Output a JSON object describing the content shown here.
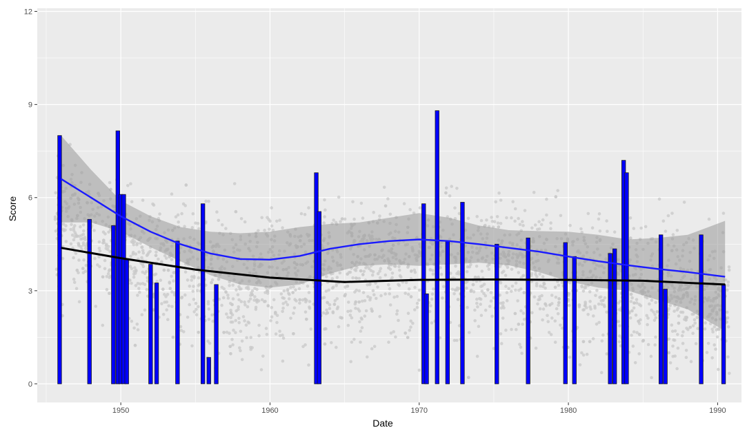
{
  "chart_data": {
    "type": "bar",
    "title": "",
    "xlabel": "Date",
    "ylabel": "Score",
    "xlim": [
      1944.4,
      1991.6
    ],
    "ylim": [
      -0.6,
      12.1
    ],
    "x_ticks": [
      1950,
      1960,
      1970,
      1980,
      1990
    ],
    "y_ticks": [
      0,
      3,
      6,
      9,
      12
    ],
    "grid": true,
    "legend": "none",
    "colors": {
      "panel": "#ebebeb",
      "grid": "#ffffff",
      "bar_fill": "#0000ff",
      "bar_outline": "#1a1a1a",
      "points": "#c8c8c8",
      "ribbon": "#999999",
      "blue_smooth": "#1a1aff",
      "black_smooth": "#000000"
    },
    "bars": {
      "x": [
        1945.9,
        1947.9,
        1949.5,
        1949.8,
        1950.0,
        1950.2,
        1950.4,
        1952.0,
        1952.4,
        1953.8,
        1955.5,
        1955.9,
        1956.4,
        1963.1,
        1963.3,
        1970.3,
        1970.5,
        1971.2,
        1971.9,
        1972.9,
        1975.2,
        1977.3,
        1979.8,
        1980.4,
        1982.8,
        1983.1,
        1983.7,
        1983.9,
        1986.2,
        1986.5,
        1988.9,
        1990.4
      ],
      "values": [
        8.0,
        5.3,
        5.1,
        8.15,
        6.1,
        6.1,
        4.0,
        3.85,
        3.25,
        4.6,
        5.8,
        0.85,
        3.2,
        6.8,
        5.55,
        5.8,
        2.9,
        8.8,
        4.6,
        5.85,
        4.5,
        4.7,
        4.55,
        4.1,
        4.2,
        4.35,
        7.2,
        6.8,
        4.8,
        3.05,
        4.8,
        3.2
      ]
    },
    "smooth_blue": {
      "x": [
        1946,
        1948,
        1950,
        1952,
        1954,
        1956,
        1958,
        1960,
        1962,
        1964,
        1966,
        1968,
        1970,
        1972,
        1974,
        1976,
        1978,
        1980,
        1982,
        1984,
        1986,
        1988,
        1990.5
      ],
      "y": [
        6.6,
        6.0,
        5.4,
        4.9,
        4.5,
        4.2,
        4.02,
        4.0,
        4.12,
        4.35,
        4.5,
        4.6,
        4.65,
        4.6,
        4.5,
        4.38,
        4.26,
        4.1,
        3.95,
        3.82,
        3.7,
        3.6,
        3.45
      ],
      "ci_low": [
        5.2,
        5.2,
        4.9,
        4.4,
        3.95,
        3.5,
        3.2,
        3.1,
        3.2,
        3.55,
        3.8,
        3.85,
        3.8,
        3.85,
        3.9,
        3.82,
        3.6,
        3.3,
        3.1,
        3.0,
        2.7,
        2.4,
        1.7
      ],
      "ci_high": [
        8.0,
        6.9,
        5.9,
        5.4,
        5.05,
        4.9,
        4.85,
        4.9,
        5.05,
        5.15,
        5.2,
        5.35,
        5.5,
        5.35,
        5.1,
        4.95,
        4.92,
        4.9,
        4.8,
        4.65,
        4.7,
        4.8,
        5.25
      ]
    },
    "smooth_black": {
      "x": [
        1946,
        1950,
        1955,
        1960,
        1965,
        1970,
        1975,
        1980,
        1985,
        1990.5
      ],
      "y": [
        4.38,
        4.05,
        3.68,
        3.42,
        3.28,
        3.35,
        3.36,
        3.35,
        3.32,
        3.2
      ]
    }
  }
}
